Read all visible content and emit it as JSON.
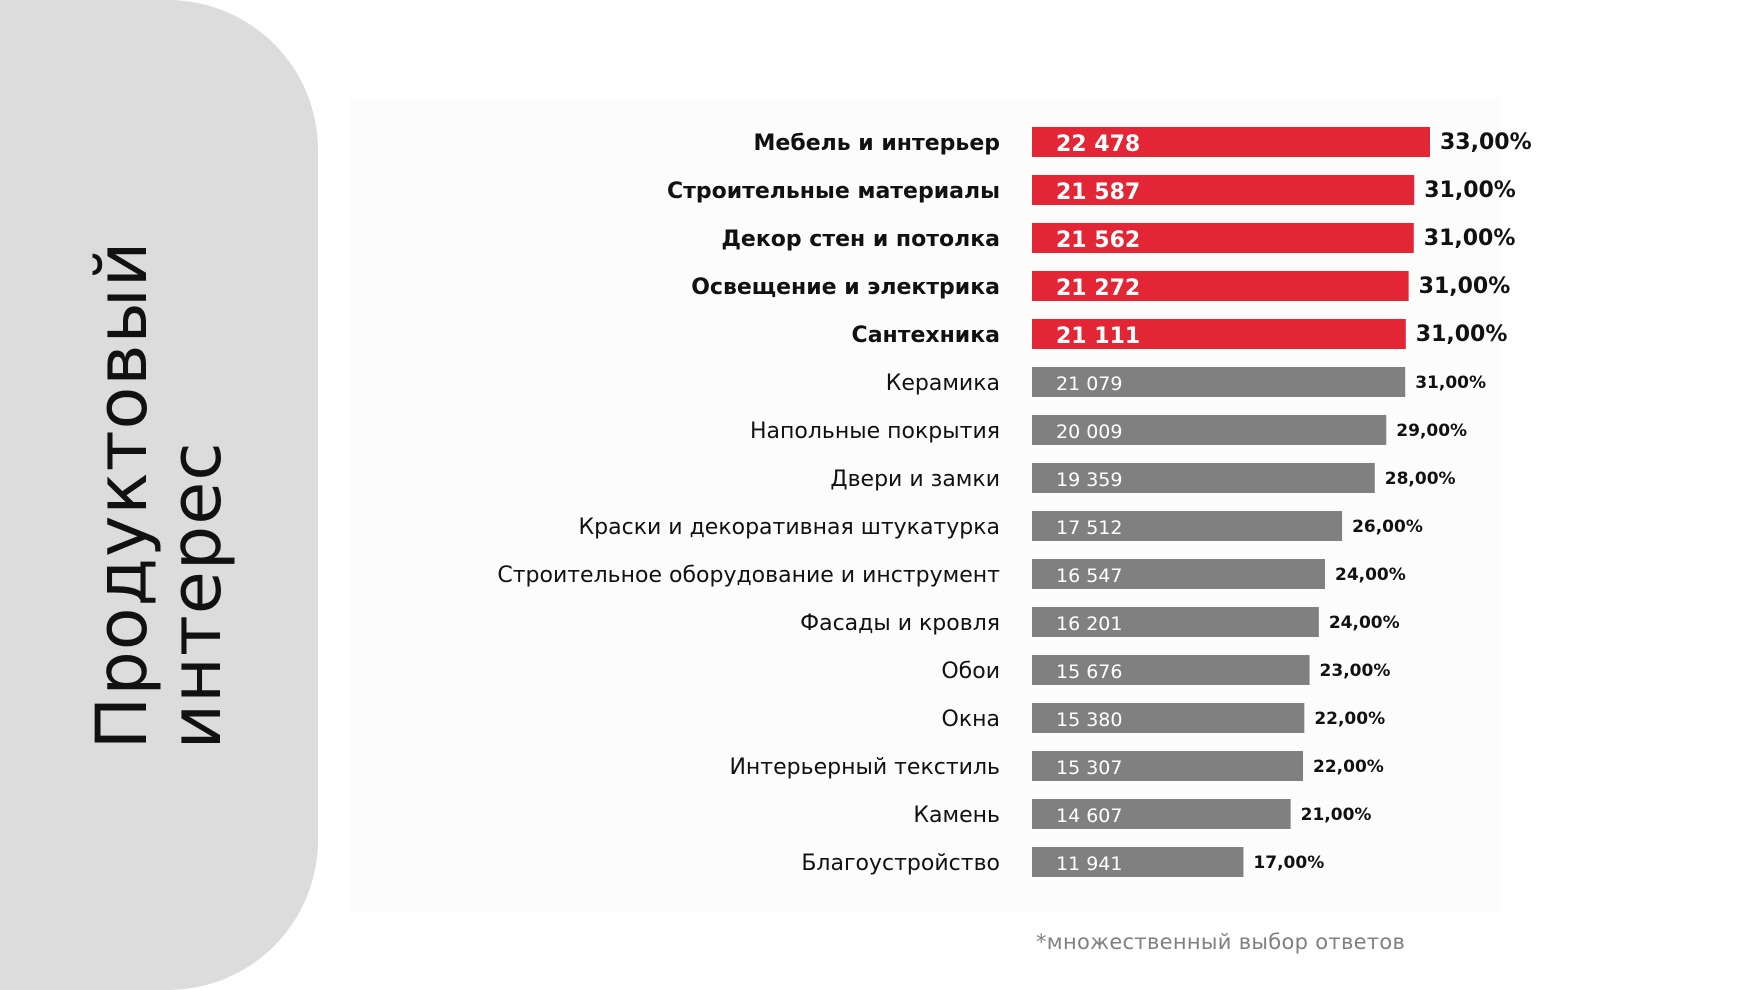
{
  "side_title": {
    "line1": "Продуктовый",
    "line2": "интерес"
  },
  "footnote": "*множественный выбор ответов",
  "colors": {
    "highlight": "#e32636",
    "default": "#808080",
    "panel": "#dcdcdc",
    "label_text": "#111111"
  },
  "chart_data": {
    "type": "bar",
    "orientation": "horizontal",
    "title": "",
    "xlabel": "",
    "ylabel": "",
    "categories": [
      "Мебель и интерьер",
      "Строительные материалы",
      "Декор стен и потолка",
      "Освещение и электрика",
      "Сантехника",
      "Керамика",
      "Напольные покрытия",
      "Двери и замки",
      "Краски и декоративная штукатурка",
      "Строительное оборудование и инструмент",
      "Фасады и кровля",
      "Обои",
      "Окна",
      "Интерьерный текстиль",
      "Камень",
      "Благоустройство"
    ],
    "values": [
      22478,
      21587,
      21562,
      21272,
      21111,
      21079,
      20009,
      19359,
      17512,
      16547,
      16201,
      15676,
      15380,
      15307,
      14607,
      11941
    ],
    "value_labels": [
      "22 478",
      "21 587",
      "21 562",
      "21 272",
      "21 111",
      "21 079",
      "20 009",
      "19 359",
      "17 512",
      "16 547",
      "16 201",
      "15 676",
      "15 380",
      "15 307",
      "14 607",
      "11 941"
    ],
    "percent_labels": [
      "33,00%",
      "31,00%",
      "31,00%",
      "31,00%",
      "31,00%",
      "31,00%",
      "29,00%",
      "28,00%",
      "26,00%",
      "24,00%",
      "24,00%",
      "23,00%",
      "22,00%",
      "22,00%",
      "21,00%",
      "17,00%"
    ],
    "highlighted": [
      true,
      true,
      true,
      true,
      true,
      false,
      false,
      false,
      false,
      false,
      false,
      false,
      false,
      false,
      false,
      false
    ]
  }
}
